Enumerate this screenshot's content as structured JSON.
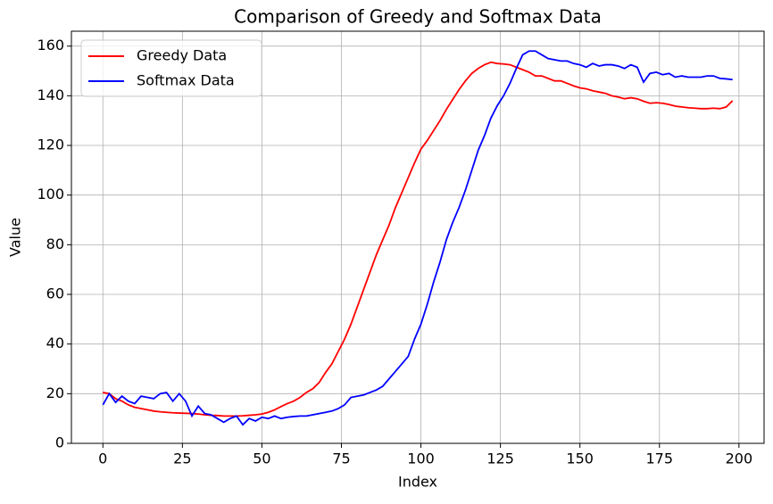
{
  "chart_data": {
    "type": "line",
    "title": "Comparison of Greedy and Softmax Data",
    "x_label": "Index",
    "y_label": "Value",
    "x": [
      0,
      2,
      4,
      6,
      8,
      10,
      12,
      14,
      16,
      18,
      20,
      22,
      24,
      26,
      28,
      30,
      32,
      34,
      36,
      38,
      40,
      42,
      44,
      46,
      48,
      50,
      52,
      54,
      56,
      58,
      60,
      62,
      64,
      66,
      68,
      70,
      72,
      74,
      76,
      78,
      80,
      82,
      84,
      86,
      88,
      90,
      92,
      94,
      96,
      98,
      100,
      102,
      104,
      106,
      108,
      110,
      112,
      114,
      116,
      118,
      120,
      122,
      124,
      126,
      128,
      130,
      132,
      134,
      136,
      138,
      140,
      142,
      144,
      146,
      148,
      150,
      152,
      154,
      156,
      158,
      160,
      162,
      164,
      166,
      168,
      170,
      172,
      174,
      176,
      178,
      180,
      182,
      184,
      186,
      188,
      190,
      192,
      194,
      196,
      198
    ],
    "series": [
      {
        "name": "Greedy Data",
        "color": "#ff0000",
        "values": [
          20.5,
          20,
          18,
          17,
          15.5,
          14.5,
          14,
          13.5,
          13,
          12.7,
          12.5,
          12.3,
          12.2,
          12.1,
          12,
          11.8,
          11.5,
          11.3,
          11.2,
          11,
          11,
          11,
          11.1,
          11.3,
          11.5,
          11.8,
          12.5,
          13.5,
          14.8,
          16,
          17,
          18.5,
          20.5,
          22,
          24.5,
          28.5,
          32,
          37,
          42,
          48,
          55,
          62,
          69,
          76,
          82,
          88,
          95,
          101,
          107,
          113,
          118.5,
          122,
          126,
          130,
          134.5,
          138.5,
          142.5,
          146,
          149,
          151,
          152.5,
          153.5,
          153,
          152.8,
          152.5,
          151.5,
          150.5,
          149.5,
          148,
          148,
          147,
          146,
          146,
          145,
          144,
          143.2,
          142.8,
          142,
          141.5,
          141,
          140,
          139.5,
          138.8,
          139.2,
          138.8,
          137.8,
          137,
          137.2,
          137,
          136.5,
          135.8,
          135.5,
          135.2,
          135,
          134.8,
          134.8,
          135,
          134.8,
          135.5,
          138
        ]
      },
      {
        "name": "Softmax Data",
        "color": "#0000ff",
        "values": [
          15.5,
          20,
          16.5,
          19,
          17,
          16,
          19,
          18.5,
          18,
          20,
          20.5,
          17,
          20,
          17,
          11,
          15,
          12,
          11.5,
          10,
          8.5,
          10,
          11,
          7.5,
          10,
          9,
          10.5,
          10,
          11,
          10,
          10.5,
          10.8,
          11,
          11,
          11.5,
          12,
          12.5,
          13,
          14,
          15.5,
          18.5,
          19,
          19.5,
          20.5,
          21.5,
          23,
          26,
          29,
          32,
          35,
          42,
          48,
          56,
          65,
          73,
          82,
          89,
          95,
          102,
          110,
          118,
          124,
          131,
          136,
          140,
          145,
          151,
          156.5,
          158,
          158,
          156.5,
          155,
          154.5,
          154,
          154,
          153,
          152.5,
          151.5,
          153,
          152,
          152.5,
          152.5,
          152,
          151,
          152.5,
          151.5,
          145.5,
          149,
          149.5,
          148.5,
          149,
          147.5,
          148,
          147.5,
          147.5,
          147.5,
          148,
          148,
          147,
          146.8,
          146.5
        ]
      }
    ],
    "xlim": [
      -9.9,
      207.9
    ],
    "ylim": [
      0,
      166
    ],
    "xticks": [
      0,
      25,
      50,
      75,
      100,
      125,
      150,
      175,
      200
    ],
    "yticks": [
      0,
      20,
      40,
      60,
      80,
      100,
      120,
      140,
      160
    ],
    "grid": true,
    "legend": "upper-left"
  }
}
